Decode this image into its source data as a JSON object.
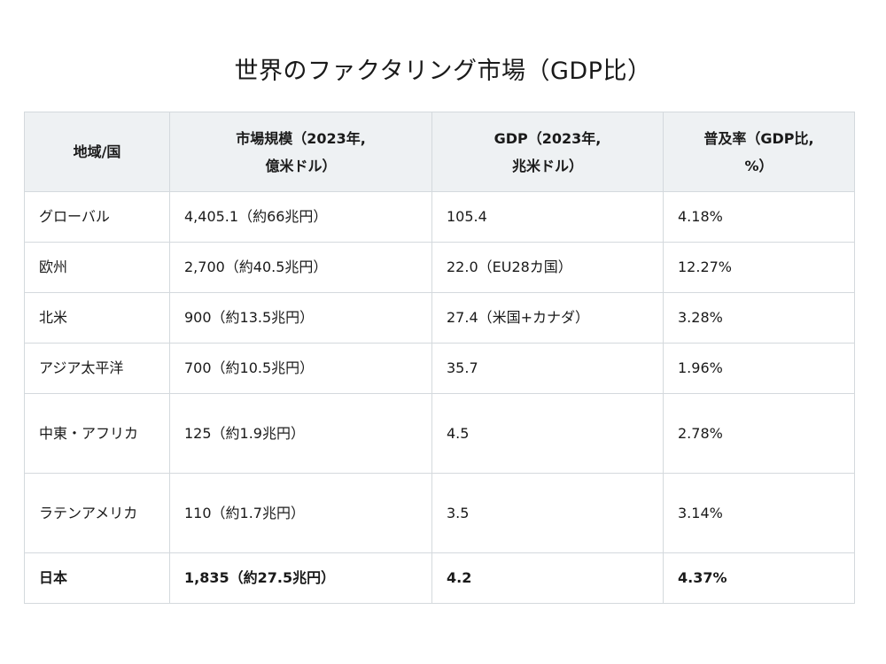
{
  "title": "世界のファクタリング市場（GDP比）",
  "table": {
    "headers": [
      [
        "地域/国"
      ],
      [
        "市場規模（2023年,",
        "億米ドル）"
      ],
      [
        "GDP（2023年,",
        "兆米ドル）"
      ],
      [
        "普及率（GDP比,",
        "%）"
      ]
    ],
    "rows": [
      [
        "グローバル",
        "4,405.1（約66兆円）",
        "105.4",
        "4.18%"
      ],
      [
        "欧州",
        "2,700（約40.5兆円）",
        "22.0（EU28カ国）",
        "12.27%"
      ],
      [
        "北米",
        "900（約13.5兆円）",
        "27.4（米国+カナダ）",
        "3.28%"
      ],
      [
        "アジア太平洋",
        "700（約10.5兆円）",
        "35.7",
        "1.96%"
      ],
      [
        "中東・アフリカ",
        "125（約1.9兆円）",
        "4.5",
        "2.78%"
      ],
      [
        "ラテンアメリカ",
        "110（約1.7兆円）",
        "3.5",
        "3.14%"
      ],
      [
        "日本",
        "1,835（約27.5兆円）",
        "4.2",
        "4.37%"
      ]
    ]
  }
}
